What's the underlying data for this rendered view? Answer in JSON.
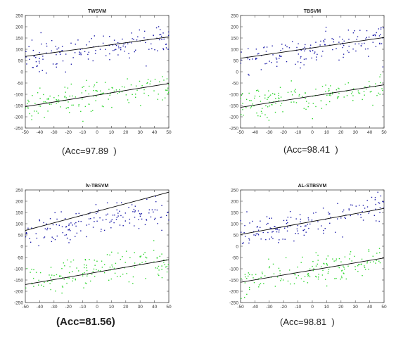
{
  "chart_data": [
    {
      "type": "scatter",
      "title": "TWSVM",
      "caption": "(Acc=97.89  )",
      "xlim": [
        -50,
        50
      ],
      "ylim": [
        -250,
        250
      ],
      "xticks": [
        -50,
        -40,
        -30,
        -20,
        -10,
        0,
        10,
        20,
        30,
        40,
        50
      ],
      "yticks": [
        250,
        200,
        150,
        100,
        50,
        0,
        -50,
        -100,
        -150,
        -200,
        -250
      ],
      "colors": {
        "class_a": "#1a1aa8",
        "class_b": "#2fd62f",
        "line": "#000000"
      },
      "series": [
        {
          "class": "blue",
          "cluster_line": [
            [
              -50,
              60
            ],
            [
              50,
              150
            ]
          ],
          "spread": 35
        },
        {
          "class": "green",
          "cluster_line": [
            [
              -50,
              -150
            ],
            [
              50,
              -60
            ]
          ],
          "spread": 35
        }
      ],
      "lines": [
        {
          "points": [
            [
              -50,
              68
            ],
            [
              50,
              155
            ]
          ]
        },
        {
          "points": [
            [
              -50,
              -155
            ],
            [
              50,
              -52
            ]
          ]
        }
      ]
    },
    {
      "type": "scatter",
      "title": "TBSVM",
      "caption": "(Acc=98.41  )",
      "xlim": [
        -50,
        50
      ],
      "ylim": [
        -250,
        250
      ],
      "xticks": [
        -50,
        -40,
        -30,
        -20,
        -10,
        0,
        10,
        20,
        30,
        40,
        50
      ],
      "yticks": [
        250,
        200,
        150,
        100,
        50,
        0,
        -50,
        -100,
        -150,
        -200,
        -250
      ],
      "colors": {
        "class_a": "#1a1aa8",
        "class_b": "#2fd62f",
        "line": "#000000"
      },
      "series": [
        {
          "class": "blue",
          "cluster_line": [
            [
              -50,
              55
            ],
            [
              50,
              150
            ]
          ],
          "spread": 40
        },
        {
          "class": "green",
          "cluster_line": [
            [
              -50,
              -150
            ],
            [
              50,
              -60
            ]
          ],
          "spread": 35
        }
      ],
      "lines": [
        {
          "points": [
            [
              -50,
              60
            ],
            [
              50,
              152
            ]
          ]
        },
        {
          "points": [
            [
              -50,
              -158
            ],
            [
              50,
              -58
            ]
          ]
        }
      ]
    },
    {
      "type": "scatter",
      "title": "lv-TBSVM",
      "caption": "(Acc=81.56)",
      "xlim": [
        -50,
        50
      ],
      "ylim": [
        -250,
        250
      ],
      "xticks": [
        -50,
        -40,
        -30,
        -20,
        -10,
        0,
        10,
        20,
        30,
        40,
        50
      ],
      "yticks": [
        250,
        200,
        150,
        100,
        50,
        0,
        -50,
        -100,
        -150,
        -200,
        -250
      ],
      "colors": {
        "class_a": "#1a1aa8",
        "class_b": "#2fd62f",
        "line": "#000000"
      },
      "series": [
        {
          "class": "blue",
          "cluster_line": [
            [
              -50,
              60
            ],
            [
              50,
              160
            ]
          ],
          "spread": 40
        },
        {
          "class": "green",
          "cluster_line": [
            [
              -50,
              -150
            ],
            [
              50,
              -60
            ]
          ],
          "spread": 40
        }
      ],
      "lines": [
        {
          "points": [
            [
              -50,
              70
            ],
            [
              50,
              240
            ]
          ]
        },
        {
          "points": [
            [
              -50,
              -170
            ],
            [
              50,
              -60
            ]
          ]
        }
      ]
    },
    {
      "type": "scatter",
      "title": "AL-STBSVM",
      "caption": "(Acc=98.81  )",
      "xlim": [
        -50,
        50
      ],
      "ylim": [
        -250,
        250
      ],
      "xticks": [
        -50,
        -40,
        -30,
        -20,
        -10,
        0,
        10,
        20,
        30,
        40,
        50
      ],
      "yticks": [
        250,
        200,
        150,
        100,
        50,
        0,
        -50,
        -100,
        -150,
        -200,
        -250
      ],
      "colors": {
        "class_a": "#1a1aa8",
        "class_b": "#2fd62f",
        "line": "#000000"
      },
      "series": [
        {
          "class": "blue",
          "cluster_line": [
            [
              -50,
              55
            ],
            [
              50,
              165
            ]
          ],
          "spread": 40
        },
        {
          "class": "green",
          "cluster_line": [
            [
              -50,
              -150
            ],
            [
              50,
              -60
            ]
          ],
          "spread": 38
        }
      ],
      "lines": [
        {
          "points": [
            [
              -50,
              52
            ],
            [
              50,
              168
            ]
          ]
        },
        {
          "points": [
            [
              -50,
              -160
            ],
            [
              50,
              -52
            ]
          ]
        }
      ]
    }
  ]
}
